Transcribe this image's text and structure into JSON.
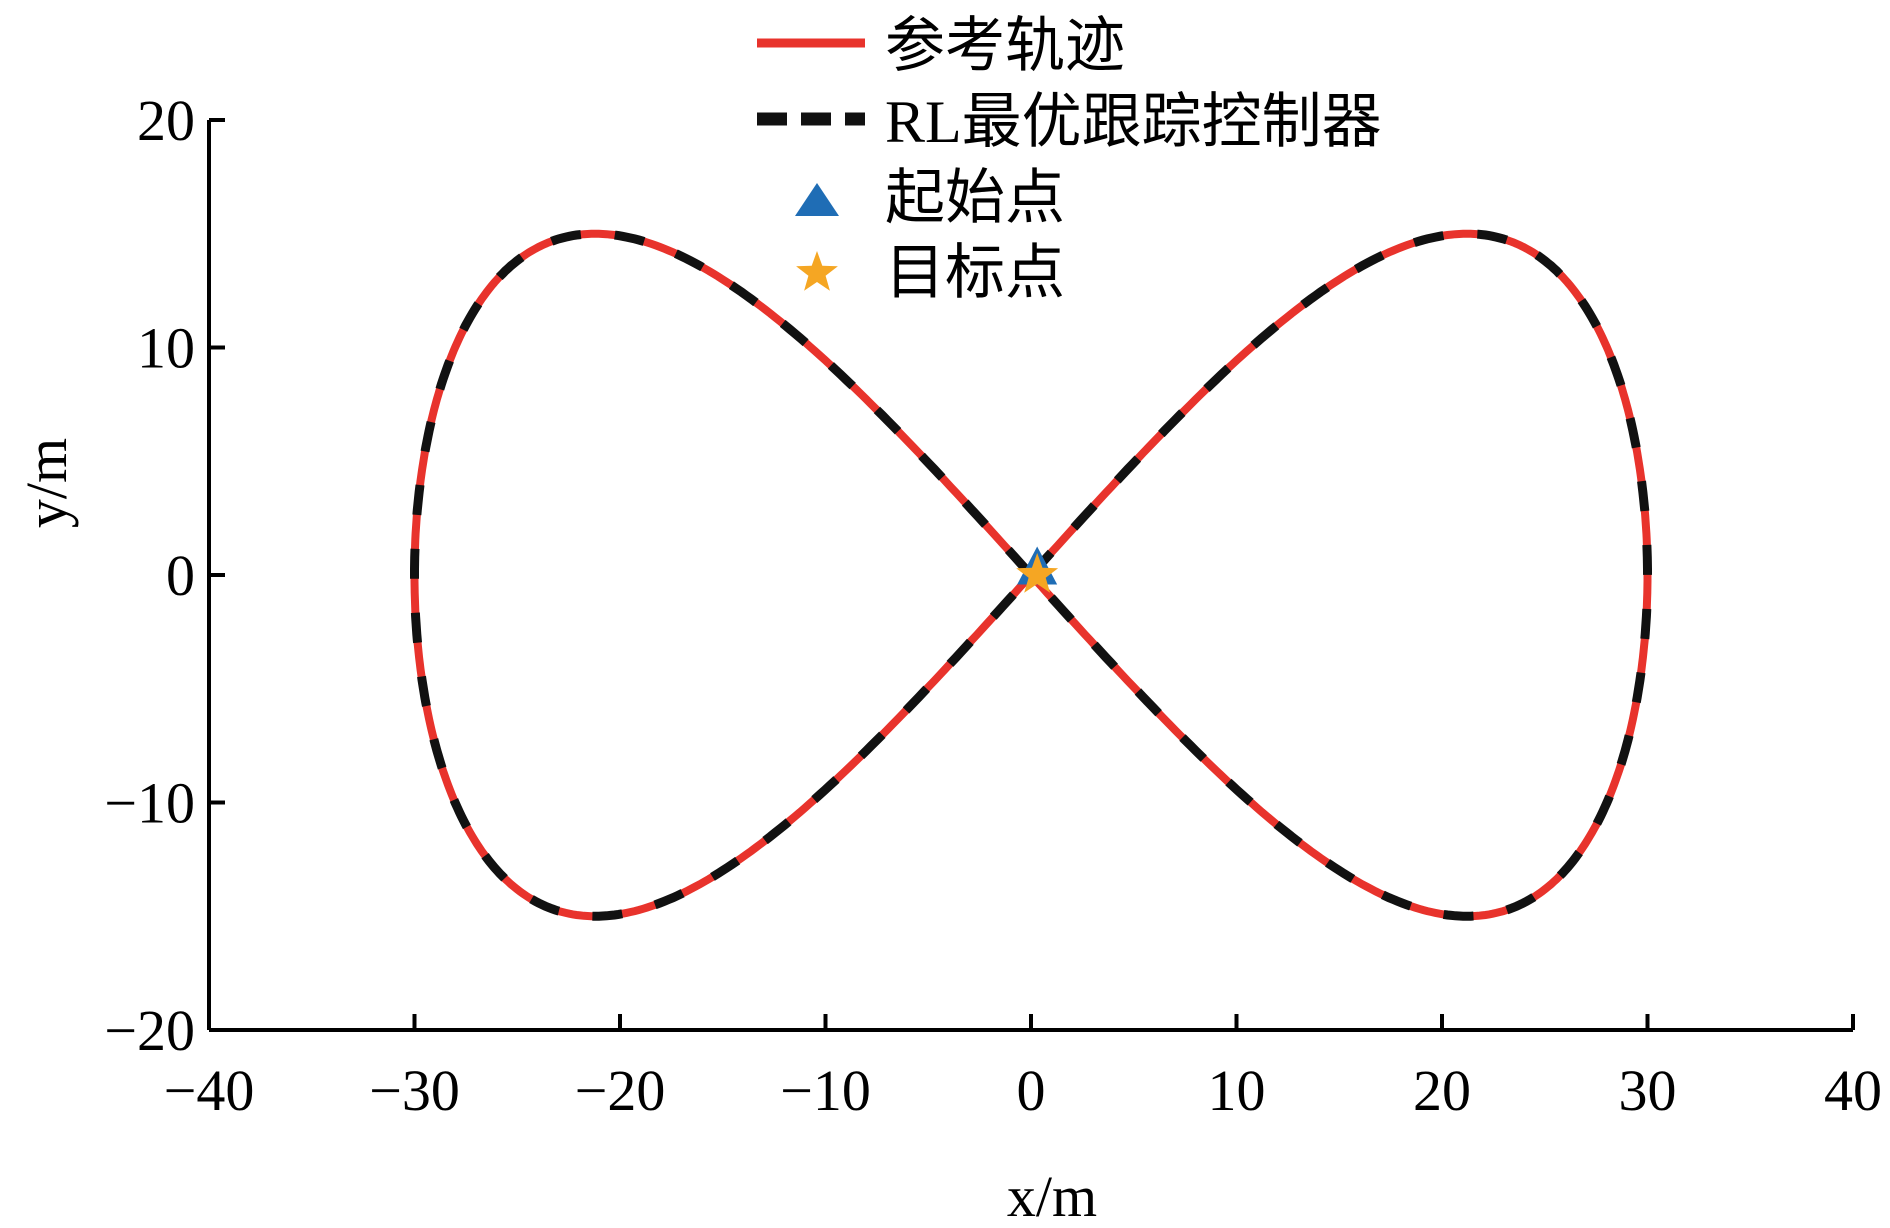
{
  "chart_data": {
    "type": "line",
    "xlabel": "x/m",
    "ylabel": "y/m",
    "xlim": [
      -40,
      40
    ],
    "ylim": [
      -20,
      20
    ],
    "xticks": [
      -40,
      -30,
      -20,
      -10,
      0,
      10,
      20,
      30,
      40
    ],
    "yticks": [
      -20,
      -10,
      0,
      10,
      20
    ],
    "xtick_labels": [
      "−40",
      "−30",
      "−20",
      "−10",
      "0",
      "10",
      "20",
      "30",
      "40"
    ],
    "ytick_labels": [
      "−20",
      "−10",
      "0",
      "10",
      "20"
    ],
    "grid": false,
    "legend_position": "top",
    "curve": {
      "form": "lemniscate of Gerono",
      "x_amplitude": 30,
      "y_amplitude": 30,
      "x_peak": 21.2,
      "y_peak": 15
    },
    "series": [
      {
        "name": "参考轨迹",
        "style": "solid",
        "color": "#e8332c",
        "x": [
          0,
          7.8,
          15,
          21.2,
          26,
          29,
          30,
          29,
          26,
          21.2,
          15,
          7.8,
          0,
          -7.8,
          -15,
          -21.2,
          -26,
          -29,
          -30,
          -29,
          -26,
          -21.2,
          -15,
          -7.8,
          0
        ],
        "y": [
          0,
          7.5,
          13,
          15,
          13,
          7.5,
          0,
          -7.5,
          -13,
          -15,
          -13,
          -7.5,
          0,
          7.5,
          13,
          15,
          13,
          7.5,
          0,
          -7.5,
          -13,
          -15,
          -13,
          -7.5,
          0
        ]
      },
      {
        "name": "RL最优跟踪控制器",
        "style": "dashed",
        "color": "#111111",
        "x": [
          0,
          7.8,
          15,
          21.2,
          26,
          29,
          30,
          29,
          26,
          21.2,
          15,
          7.8,
          0,
          -7.8,
          -15,
          -21.2,
          -26,
          -29,
          -30,
          -29,
          -26,
          -21.2,
          -15,
          -7.8,
          0
        ],
        "y": [
          0,
          7.5,
          13,
          15,
          13,
          7.5,
          0,
          -7.5,
          -13,
          -15,
          -13,
          -7.5,
          0,
          7.5,
          13,
          15,
          13,
          7.5,
          0,
          -7.5,
          -13,
          -15,
          -13,
          -7.5,
          0
        ]
      }
    ],
    "markers": [
      {
        "name": "起始点",
        "shape": "triangle",
        "color": "#1f6db5",
        "x": 0.3,
        "y": 0.2
      },
      {
        "name": "目标点",
        "shape": "star",
        "color": "#f5a623",
        "x": 0.3,
        "y": 0
      }
    ]
  }
}
